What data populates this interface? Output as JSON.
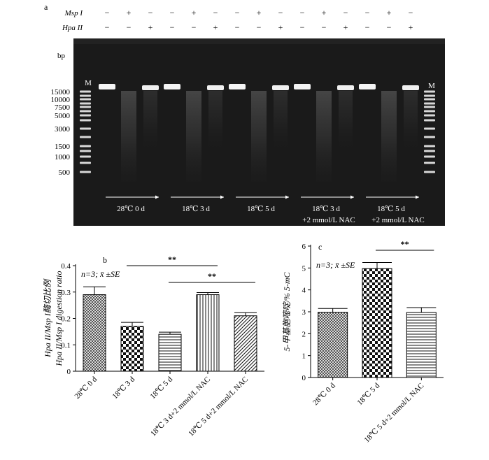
{
  "gel": {
    "panel_label": "a",
    "enzyme_labels": [
      "Msp I",
      "Hpa II"
    ],
    "msp_row": [
      "−",
      "+",
      "−",
      "−",
      "+",
      "−",
      "−",
      "+",
      "−",
      "−",
      "+",
      "−",
      "−",
      "+",
      "−"
    ],
    "hpa_row": [
      "−",
      "−",
      "+",
      "−",
      "−",
      "+",
      "−",
      "−",
      "+",
      "−",
      "−",
      "+",
      "−",
      "−",
      "+"
    ],
    "marker_label": "M",
    "bp_label": "bp",
    "size_labels": [
      "15000",
      "10000",
      "7500",
      "5000",
      "3000",
      "1500",
      "1000",
      "500"
    ],
    "groups": [
      {
        "line1": "28℃ 0 d",
        "line2": ""
      },
      {
        "line1": "18℃ 3 d",
        "line2": ""
      },
      {
        "line1": "18℃ 5 d",
        "line2": ""
      },
      {
        "line1": "18℃ 3 d",
        "line2": "+2 mmol/L NAC"
      },
      {
        "line1": "18℃ 5 d",
        "line2": "+2 mmol/L NAC"
      }
    ]
  },
  "chart_data": [
    {
      "panel": "b",
      "type": "bar",
      "annotation": "n=3; x̄ ±SE",
      "ylabel_line1": "Hpa II/Msp I酶切比例",
      "ylabel_line2": "Hpa II/Msp I digestion ratio",
      "categories": [
        "28℃ 0 d",
        "18℃ 3 d",
        "18℃ 5 d",
        "18℃ 3 d+2 mmol/L NAC",
        "18℃ 5 d+2 mmol/L NAC"
      ],
      "values": [
        0.29,
        0.17,
        0.14,
        0.29,
        0.21
      ],
      "errors": [
        0.03,
        0.015,
        0.008,
        0.008,
        0.012
      ],
      "patterns": [
        "crosshatch",
        "checker",
        "hlines",
        "vlines",
        "diag"
      ],
      "ylim": [
        0,
        0.4
      ],
      "yticks": [
        "0",
        "0.1",
        "0.2",
        "0.3",
        "0.4"
      ],
      "significance": [
        {
          "from": 1,
          "to": 3,
          "label": "**"
        },
        {
          "from": 2,
          "to": 4,
          "label": "**"
        }
      ]
    },
    {
      "panel": "c",
      "type": "bar",
      "annotation": "n=3; x̄ ±SE",
      "ylabel_line1": "5-甲基胞嘧啶/% 5-mC",
      "categories": [
        "28℃ 0 d",
        "18℃ 5 d",
        "18℃ 5 d+2 mmol/L NAC"
      ],
      "values": [
        2.98,
        4.97,
        2.97
      ],
      "errors": [
        0.17,
        0.28,
        0.22
      ],
      "patterns": [
        "crosshatch",
        "checker",
        "hlines"
      ],
      "ylim": [
        0,
        6
      ],
      "yticks": [
        "0",
        "1",
        "2",
        "3",
        "4",
        "5",
        "6"
      ],
      "significance": [
        {
          "from": 1,
          "to": 2,
          "label": "**"
        }
      ]
    }
  ]
}
